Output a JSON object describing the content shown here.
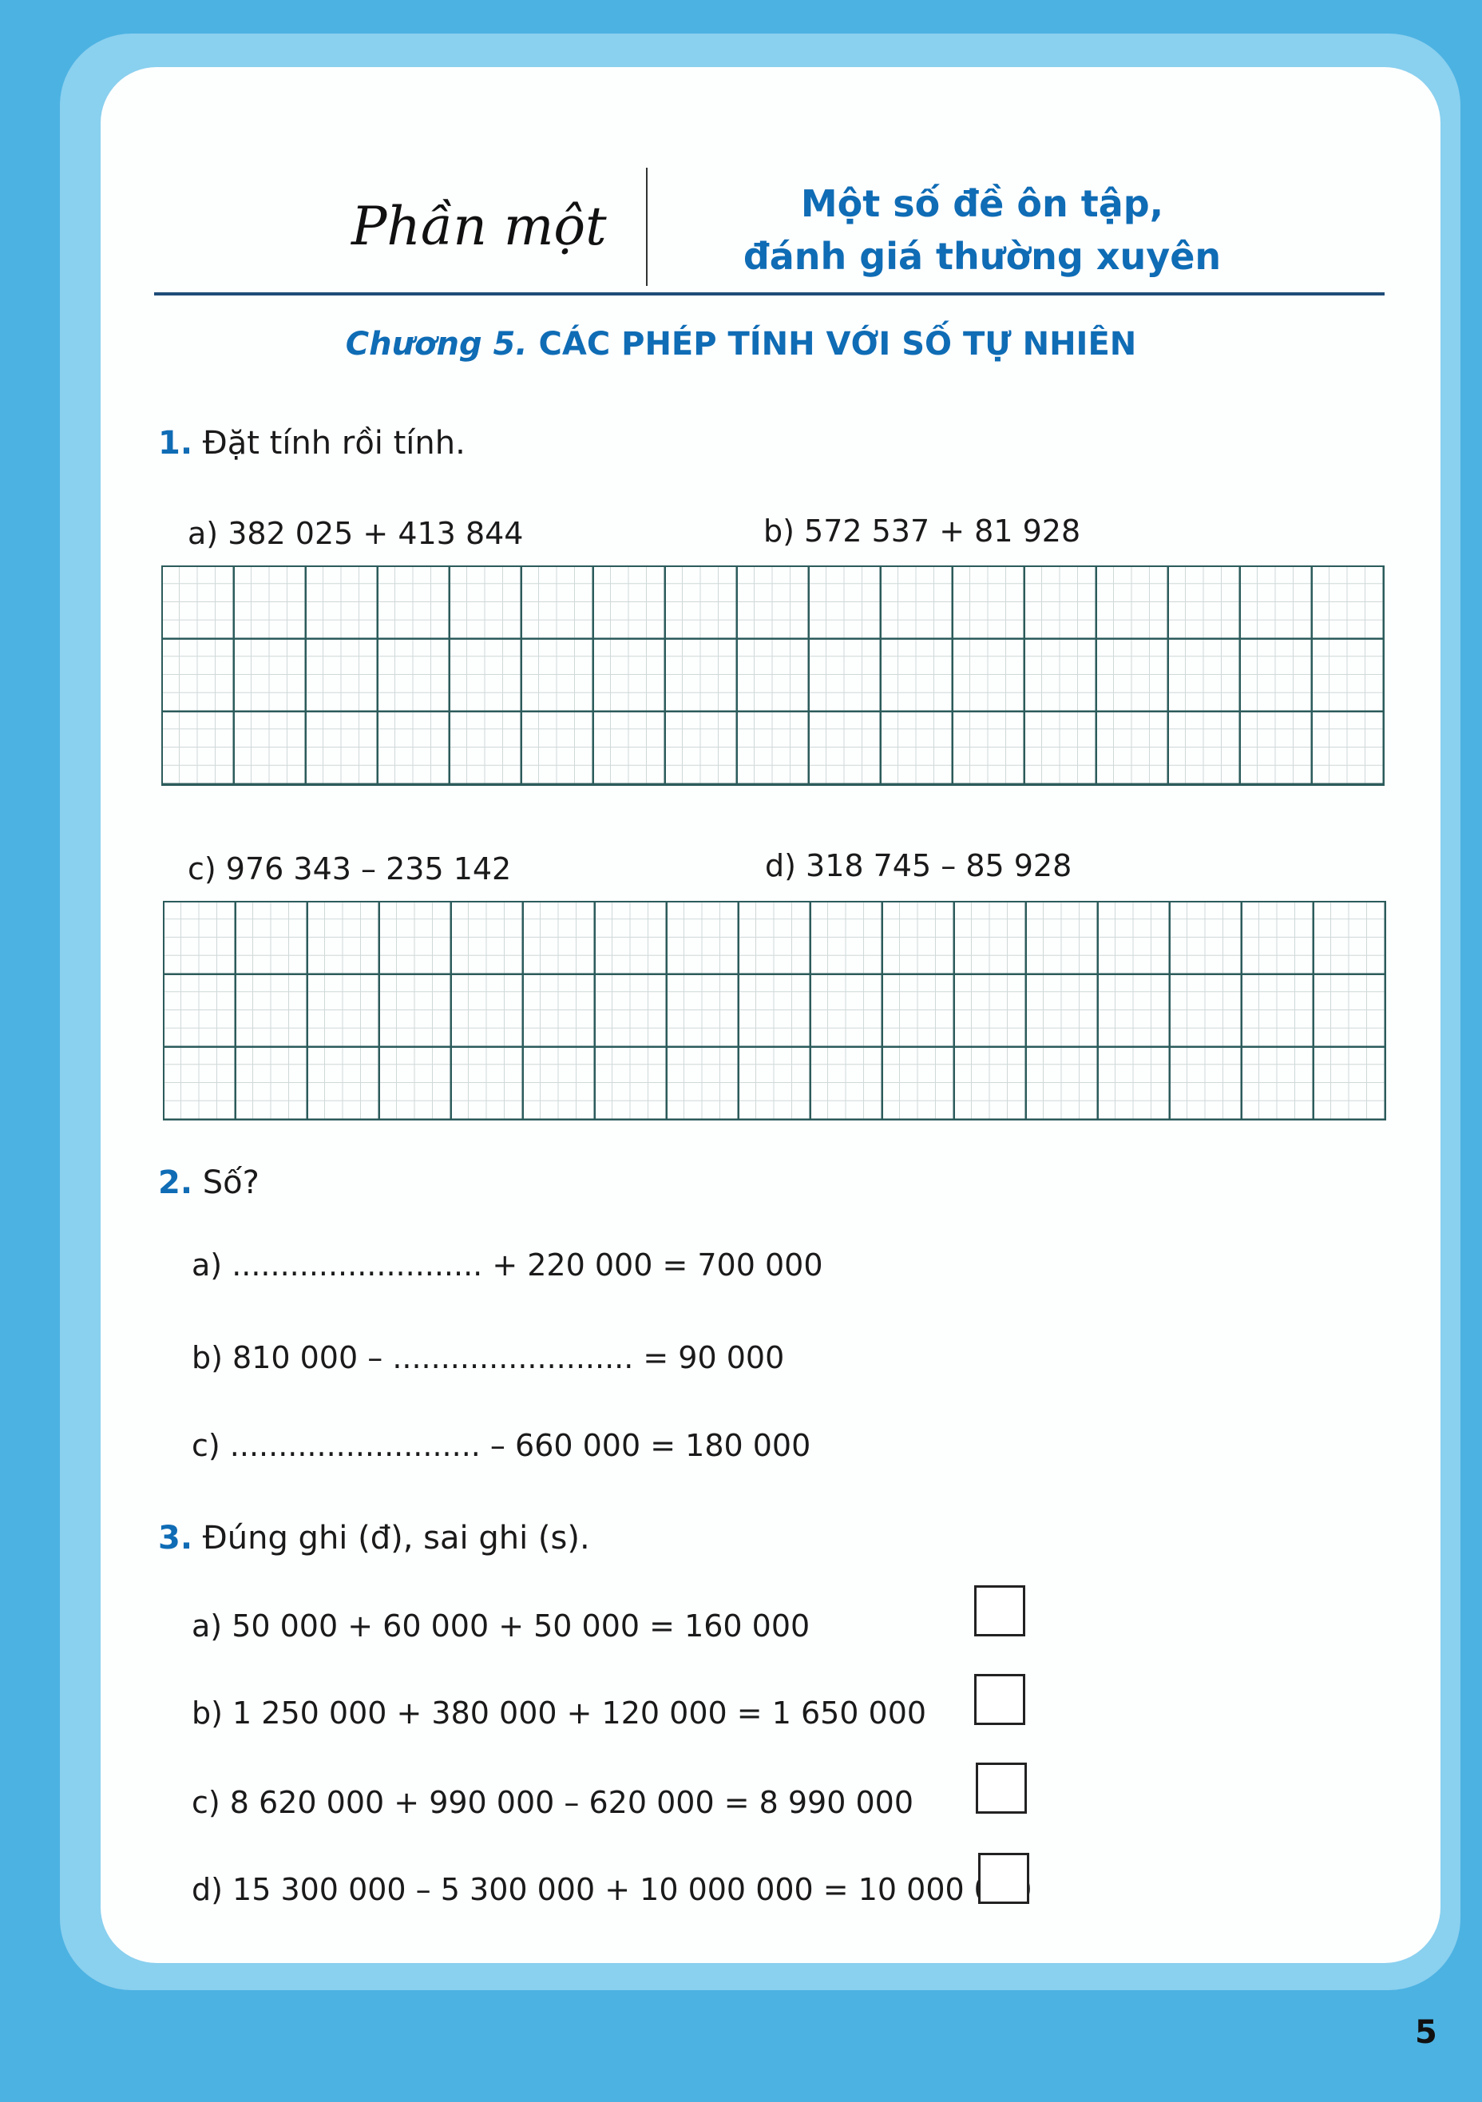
{
  "header": {
    "part": "Phần một",
    "title_line1": "Một số đề ôn tập,",
    "title_line2": "đánh giá thường xuyên"
  },
  "chapter": {
    "prefix": "Chương 5.",
    "title": "CÁC PHÉP TÍNH VỚI SỐ TỰ NHIÊN"
  },
  "exercise1": {
    "number": "1.",
    "prompt": "Đặt tính rồi tính.",
    "items": [
      "a) 382 025 + 413 844",
      "b) 572 537 + 81 928",
      "c) 976 343 – 235 142",
      "d) 318 745 – 85 928"
    ]
  },
  "exercise2": {
    "number": "2.",
    "prompt": "Số?",
    "items": [
      "a) .......................... + 220 000 = 700 000",
      "b) 810 000 – ......................... = 90 000",
      "c) .......................... – 660 000 = 180 000"
    ]
  },
  "exercise3": {
    "number": "3.",
    "prompt": "Đúng ghi (đ), sai ghi (s).",
    "items": [
      "a) 50 000 + 60 000 + 50 000 = 160 000",
      "b) 1 250 000 + 380 000 + 120 000 = 1 650 000",
      "c) 8 620 000 + 990 000 – 620 000 = 8 990 000",
      "d) 15 300 000 – 5 300 000 + 10 000 000 = 10 000 000"
    ]
  },
  "page_number": "5",
  "colors": {
    "accent": "#0f6cb5",
    "background": "#4cb2e2",
    "frame": "#8ad0ef"
  }
}
